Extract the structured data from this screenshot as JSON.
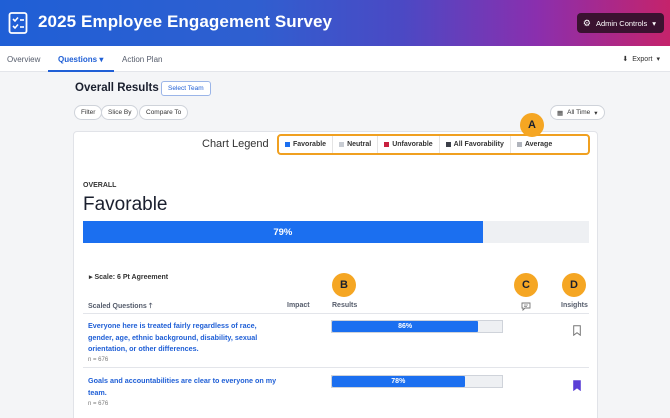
{
  "header": {
    "title": "2025 Employee Engagement Survey",
    "admin_label": "Admin Controls"
  },
  "tabs": [
    {
      "label": "Overview"
    },
    {
      "label": "Questions"
    },
    {
      "label": "Action Plan"
    }
  ],
  "export_label": "Export",
  "overall": {
    "title": "Overall Results",
    "select_team": "Select Team",
    "filters": [
      "Filter",
      "Slice By",
      "Compare To"
    ],
    "time_filter": "All Time"
  },
  "legend": {
    "label": "Chart Legend",
    "items": [
      {
        "label": "Favorable",
        "color": "#1b6ff0"
      },
      {
        "label": "Neutral",
        "color": "#c8ccd3"
      },
      {
        "label": "Unfavorable",
        "color": "#c8203f"
      },
      {
        "label": "All Favorability",
        "color": "#3b3f48"
      },
      {
        "label": "Average",
        "color": "#b0b4bc"
      }
    ]
  },
  "markers": {
    "a": "A",
    "b": "B",
    "c": "C",
    "d": "D"
  },
  "summary": {
    "label": "OVERALL",
    "metric": "Favorable",
    "percent_label": "79%",
    "percent": 79
  },
  "scale_label": "Scale: 6 Pt Agreement",
  "columns": {
    "questions": "Scaled Questions",
    "impact": "Impact",
    "results": "Results",
    "insights": "Insights"
  },
  "questions": [
    {
      "text": "Everyone here is treated fairly regardless of race, gender, age, ethnic background, disability, sexual orientation, or other differences.",
      "n": "n = 676",
      "percent_label": "86%",
      "percent": 86,
      "bookmarked": false
    },
    {
      "text": "Goals and accountabilities are clear to everyone on my team.",
      "n": "n = 676",
      "percent_label": "78%",
      "percent": 78,
      "bookmarked": true
    }
  ]
}
